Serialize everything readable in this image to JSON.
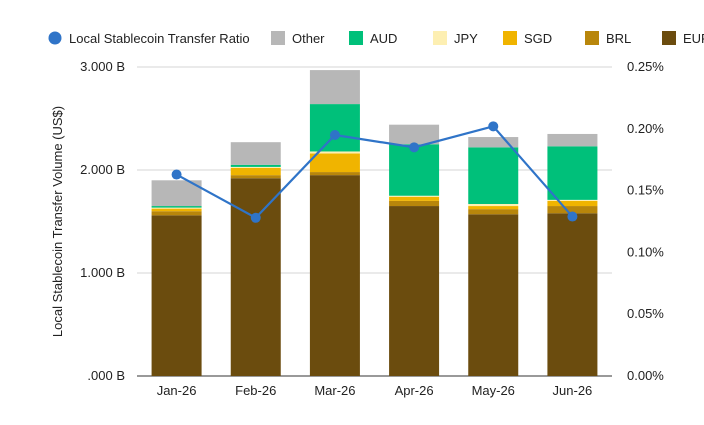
{
  "chart_data": {
    "type": "bar",
    "stacked": true,
    "categories": [
      "Jan-26",
      "Feb-26",
      "Mar-26",
      "Apr-26",
      "May-26",
      "Jun-26"
    ],
    "series": [
      {
        "name": "EUR",
        "color": "#6b4c0e",
        "values": [
          1.56,
          1.92,
          1.95,
          1.65,
          1.57,
          1.58
        ]
      },
      {
        "name": "BRL",
        "color": "#b8860b",
        "values": [
          0.04,
          0.03,
          0.03,
          0.05,
          0.05,
          0.07
        ]
      },
      {
        "name": "SGD",
        "color": "#f0b400",
        "values": [
          0.025,
          0.07,
          0.18,
          0.04,
          0.03,
          0.05
        ]
      },
      {
        "name": "JPY",
        "color": "#fdefb2",
        "values": [
          0.01,
          0.01,
          0.02,
          0.01,
          0.02,
          0.01
        ]
      },
      {
        "name": "AUD",
        "color": "#00c07a",
        "values": [
          0.015,
          0.02,
          0.46,
          0.5,
          0.55,
          0.52
        ]
      },
      {
        "name": "Other",
        "color": "#b7b7b7",
        "values": [
          0.25,
          0.22,
          0.33,
          0.19,
          0.1,
          0.12
        ]
      }
    ],
    "line_series": {
      "name": "Local Stablecoin Transfer Ratio",
      "color": "#2f74c8",
      "axis": "right",
      "values": [
        0.00163,
        0.00128,
        0.00195,
        0.00185,
        0.00202,
        0.00129
      ]
    },
    "left_axis": {
      "label": "Local Stablecoin Transfer Volume (US$)",
      "range": [
        0,
        3
      ],
      "ticks": [
        ".000 B",
        "1.000 B",
        "2.000 B",
        "3.000 B"
      ]
    },
    "right_axis": {
      "range": [
        0,
        0.0025
      ],
      "ticks": [
        "0.00%",
        "0.05%",
        "0.10%",
        "0.15%",
        "0.20%",
        "0.25%"
      ]
    },
    "legend": {
      "position": "top",
      "entries": [
        "Local Stablecoin Transfer Ratio",
        "Other",
        "AUD",
        "JPY",
        "SGD",
        "BRL",
        "EUR"
      ]
    },
    "gridlines": true,
    "gridline_color": "#d4d4d4"
  }
}
